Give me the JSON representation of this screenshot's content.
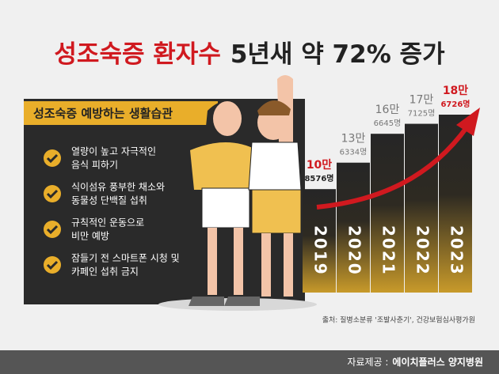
{
  "chart_data": {
    "type": "bar",
    "title_highlight": "성조숙증 환자수",
    "title_rest": "5년새 약 72% 증가",
    "categories": [
      "2019",
      "2020",
      "2021",
      "2022",
      "2023"
    ],
    "values": [
      108576,
      136334,
      166645,
      177125,
      186726
    ],
    "value_labels": [
      [
        "10만",
        "8576명"
      ],
      [
        "13만",
        "6334명"
      ],
      [
        "16만",
        "6645명"
      ],
      [
        "17만",
        "7125명"
      ],
      [
        "18만",
        "6726명"
      ]
    ],
    "label_colors": [
      [
        "#d0191f",
        "#222222"
      ],
      [
        "#777777",
        "#777777"
      ],
      [
        "#777777",
        "#777777"
      ],
      [
        "#777777",
        "#777777"
      ],
      [
        "#d0191f",
        "#d0191f"
      ]
    ],
    "color": "#2a2a2a",
    "source": "출처: 질병소분류 '조발사춘기', 건강보험심사평가원"
  },
  "panel": {
    "title": "성조숙증 예방하는 생활습관",
    "items": [
      [
        "열량이 높고 자극적인",
        "음식 피하기"
      ],
      [
        "식이섬유 풍부한 채소와",
        "동물성 단백질 섭취"
      ],
      [
        "규칙적인 운동으로",
        "비만 예방"
      ],
      [
        "잠들기 전 스마트폰 시청 및",
        "카페인 섭취 금지"
      ]
    ]
  },
  "footer": {
    "label": "자료제공 :",
    "org": "에이치플러스 양지병원"
  }
}
